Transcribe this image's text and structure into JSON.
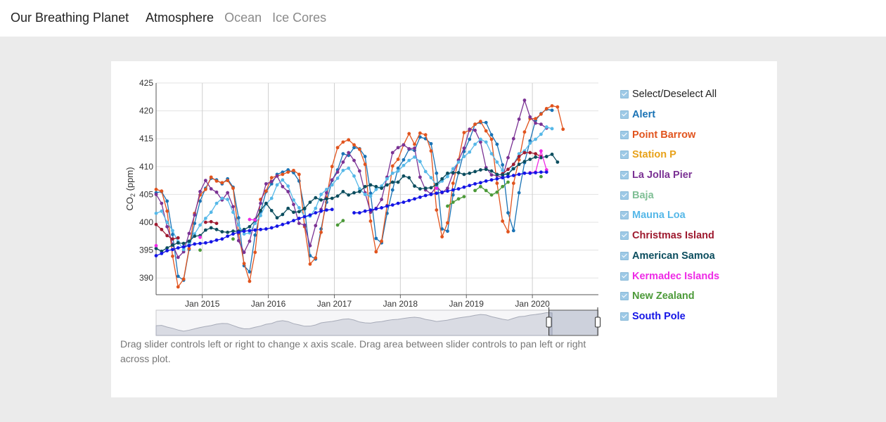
{
  "header": {
    "brand": "Our Breathing Planet",
    "tabs": [
      {
        "label": "Atmosphere",
        "active": true
      },
      {
        "label": "Ocean",
        "active": false
      },
      {
        "label": "Ice Cores",
        "active": false
      }
    ]
  },
  "hint": "Drag slider controls left or right to change x axis scale. Drag area between slider controls to pan left or right across plot.",
  "legend": {
    "select_all": "Select/Deselect All"
  },
  "chart_data": {
    "type": "line",
    "ylabel": "CO2 (ppm)",
    "ylabel_main": "CO",
    "ylabel_sub": "2",
    "ylabel_unit": " (ppm)",
    "ylim": [
      387,
      425
    ],
    "y_ticks": [
      390,
      395,
      400,
      405,
      410,
      415,
      420,
      425
    ],
    "xlim": [
      2014.3,
      2021.0
    ],
    "x_ticks": [
      {
        "value": 2015.0,
        "label": "Jan 2015"
      },
      {
        "value": 2016.0,
        "label": "Jan 2016"
      },
      {
        "value": 2017.0,
        "label": "Jan 2017"
      },
      {
        "value": 2018.0,
        "label": "Jan 2018"
      },
      {
        "value": 2019.0,
        "label": "Jan 2019"
      },
      {
        "value": 2020.0,
        "label": "Jan 2020"
      }
    ],
    "grid": true,
    "legend_placement": "right",
    "series": [
      {
        "name": "Alert",
        "color": "#1a73b5",
        "t0": 2014.3,
        "dt": 0.0833,
        "values": [
          405.3,
          405.5,
          403.8,
          397.8,
          390.3,
          389.6,
          395.1,
          399.8,
          403.8,
          406.1,
          407.9,
          407.6,
          406.9,
          407.8,
          406.3,
          400.8,
          392.2,
          391.1,
          397.7,
          401.9,
          405.5,
          406.9,
          408.6,
          409.0,
          409.4,
          408.9,
          407.4,
          402.4,
          394.0,
          393.4,
          398.8,
          403.6,
          407.5,
          409.4,
          412.3,
          412.0,
          413.4,
          413.2,
          411.8,
          405.2,
          397.1,
          396.3,
          401.6,
          405.8,
          409.7,
          411.2,
          413.1,
          412.9,
          415.3,
          415.0,
          414.1,
          408.8,
          398.8,
          398.4,
          404.9,
          408.9,
          412.7,
          414.9,
          417.6,
          417.9,
          417.9,
          415.7,
          414.0,
          410.3,
          401.7,
          398.5,
          405.3,
          410.7,
          414.6,
          418.3,
          419.5,
          420.3,
          420.1
        ]
      },
      {
        "name": "Point Barrow",
        "color": "#e1541e",
        "t0": 2014.3,
        "dt": 0.0833,
        "values": [
          405.9,
          405.6,
          402.0,
          393.9,
          388.4,
          389.8,
          395.3,
          401.6,
          404.9,
          405.9,
          408.1,
          407.4,
          407.1,
          407.5,
          406.1,
          398.0,
          392.6,
          389.4,
          394.6,
          404.1,
          405.6,
          408.0,
          408.3,
          408.6,
          409.0,
          409.3,
          408.6,
          399.2,
          392.5,
          393.6,
          398.2,
          404.4,
          410.0,
          413.4,
          414.4,
          414.8,
          413.9,
          413.1,
          410.4,
          400.2,
          394.7,
          396.6,
          403.0,
          410.1,
          411.3,
          413.9,
          415.9,
          414.0,
          416.0,
          415.7,
          412.8,
          402.2,
          397.4,
          399.9,
          407.0,
          411.2,
          416.1,
          416.5,
          417.6,
          418.1,
          416.4,
          414.9,
          407.0,
          400.2,
          398.3,
          407.0,
          411.2,
          416.2,
          418.6,
          418.6,
          419.4,
          420.4,
          420.9,
          420.7,
          416.7
        ]
      },
      {
        "name": "Station P",
        "color": "#e8a21a",
        "t0": 2014.3,
        "dt": 0.0833,
        "values": []
      },
      {
        "name": "La Jolla Pier",
        "color": "#7b3294",
        "t0": 2014.3,
        "dt": 0.0833,
        "values": [
          405.0,
          403.4,
          399.2,
          396.0,
          393.7,
          394.7,
          398.0,
          401.3,
          405.5,
          407.5,
          406.0,
          405.4,
          404.0,
          405.3,
          402.8,
          396.7,
          394.6,
          396.6,
          400.5,
          403.4,
          406.9,
          407.3,
          408.3,
          406.4,
          405.5,
          403.2,
          399.8,
          399.5,
          395.8,
          399.4,
          402.3,
          405.3,
          407.6,
          409.0,
          410.8,
          412.5,
          411.1,
          409.2,
          405.3,
          401.8,
          402.5,
          404.1,
          408.1,
          412.5,
          413.4,
          413.9,
          413.2,
          413.3,
          408.1,
          405.8,
          405.1,
          406.5,
          405.3,
          406.1,
          408.8,
          411.1,
          413.3,
          416.7,
          416.5,
          414.4,
          409.8,
          408.5,
          408.4,
          408.0,
          411.6,
          415.0,
          418.5,
          421.9,
          418.9,
          417.8,
          417.6,
          416.9
        ]
      },
      {
        "name": "Baja",
        "color": "#7fbf95",
        "t0": 2014.3,
        "dt": 0.0833,
        "values": []
      },
      {
        "name": "Mauna Loa",
        "color": "#56b8e8",
        "t0": 2014.3,
        "dt": 0.0833,
        "values": [
          401.6,
          402.0,
          400.0,
          398.5,
          396.5,
          395.1,
          396.3,
          397.9,
          399.5,
          400.7,
          401.8,
          403.4,
          404.3,
          404.1,
          401.8,
          399.5,
          397.9,
          398.1,
          399.8,
          401.2,
          403.3,
          404.3,
          406.7,
          407.6,
          406.5,
          404.0,
          402.6,
          401.0,
          401.1,
          402.5,
          405.0,
          405.9,
          406.7,
          407.9,
          409.3,
          409.7,
          408.3,
          406.0,
          405.0,
          404.7,
          405.9,
          406.5,
          407.8,
          408.8,
          409.2,
          410.2,
          411.1,
          411.7,
          410.9,
          409.1,
          408.0,
          406.6,
          407.4,
          408.2,
          409.6,
          410.8,
          411.8,
          412.6,
          414.0,
          414.9,
          414.4,
          412.3,
          410.8,
          409.3,
          408.2,
          410.4,
          412.3,
          412.8,
          414.2,
          414.9,
          415.8,
          417.1,
          416.8
        ]
      },
      {
        "name": "Christmas Island",
        "color": "#9e1a2f",
        "t0": 2014.3,
        "dt": 0.0833,
        "values": [
          399.6,
          398.7,
          397.6,
          397.0,
          397.2,
          null,
          null,
          null,
          null,
          400.0,
          400.1,
          399.8,
          null,
          null,
          null,
          null,
          null,
          null,
          null,
          null,
          null,
          null,
          null,
          null,
          null,
          null,
          null,
          null,
          null,
          null,
          null,
          null,
          null,
          null,
          null,
          null,
          null,
          null,
          null,
          null,
          null,
          null,
          null,
          null,
          null,
          null,
          null,
          null,
          null,
          null,
          null,
          null,
          null,
          null,
          null,
          null,
          null,
          null,
          null,
          null,
          null,
          null,
          null,
          408.7,
          409.5,
          410.4,
          411.8,
          412.5,
          412.5,
          412.3,
          411.8,
          null,
          null
        ]
      },
      {
        "name": "American Samoa",
        "color": "#0b4d5e",
        "t0": 2014.3,
        "dt": 0.0833,
        "values": [
          395.3,
          394.8,
          395.4,
          395.9,
          396.3,
          396.2,
          396.6,
          397.5,
          397.6,
          398.6,
          399.0,
          398.7,
          398.3,
          398.2,
          398.4,
          398.4,
          398.7,
          399.2,
          400.3,
          402.1,
          403.4,
          402.1,
          400.8,
          401.4,
          402.5,
          401.8,
          401.9,
          402.5,
          403.6,
          404.4,
          404.0,
          404.2,
          404.3,
          404.7,
          405.5,
          404.9,
          405.3,
          405.5,
          406.4,
          406.7,
          406.4,
          406.1,
          406.7,
          407.2,
          407.2,
          408.3,
          408.0,
          406.5,
          406.0,
          406.1,
          406.2,
          406.8,
          407.8,
          408.8,
          408.9,
          408.9,
          408.6,
          408.8,
          409.1,
          409.4,
          409.5,
          409.2,
          408.6,
          408.5,
          408.7,
          409.6,
          410.4,
          410.9,
          411.3,
          411.7,
          411.6,
          411.8,
          412.2,
          410.8
        ]
      },
      {
        "name": "Kermadec Islands",
        "color": "#ee2ae6",
        "t0": 2014.3,
        "dt": 0.0833,
        "values": [
          395.8,
          null,
          null,
          null,
          null,
          null,
          null,
          null,
          397.3,
          null,
          null,
          null,
          null,
          null,
          null,
          null,
          null,
          400.5,
          400.4,
          null,
          null,
          null,
          null,
          null,
          null,
          null,
          null,
          null,
          null,
          null,
          null,
          null,
          null,
          null,
          null,
          null,
          null,
          null,
          null,
          null,
          null,
          null,
          null,
          null,
          null,
          null,
          null,
          null,
          null,
          null,
          null,
          406.1,
          null,
          null,
          null,
          null,
          null,
          null,
          null,
          null,
          null,
          null,
          null,
          null,
          null,
          null,
          null,
          null,
          408.9,
          409.0,
          412.8,
          409.4,
          null
        ]
      },
      {
        "name": "New Zealand",
        "color": "#4c9a39",
        "t0": 2014.3,
        "dt": 0.0833,
        "values": [
          null,
          null,
          null,
          null,
          null,
          null,
          null,
          null,
          395.0,
          null,
          null,
          null,
          null,
          null,
          397.0,
          null,
          null,
          null,
          null,
          null,
          null,
          null,
          null,
          null,
          null,
          null,
          null,
          null,
          null,
          null,
          null,
          null,
          null,
          399.5,
          400.3,
          null,
          null,
          null,
          null,
          null,
          null,
          null,
          null,
          null,
          null,
          null,
          null,
          null,
          null,
          null,
          null,
          null,
          null,
          402.9,
          403.6,
          404.2,
          404.6,
          null,
          405.7,
          406.4,
          405.7,
          404.9,
          405.4,
          406.4,
          407.2,
          null,
          null,
          null,
          null,
          null,
          408.2,
          null,
          null
        ]
      },
      {
        "name": "South Pole",
        "color": "#1414e6",
        "t0": 2014.3,
        "dt": 0.0833,
        "values": [
          394.0,
          394.4,
          394.9,
          395.1,
          395.4,
          395.6,
          395.8,
          396.1,
          396.2,
          396.3,
          396.5,
          396.8,
          397.0,
          397.5,
          397.9,
          398.2,
          398.4,
          398.5,
          398.6,
          398.7,
          398.8,
          399.0,
          399.3,
          399.6,
          399.9,
          400.3,
          400.7,
          401.0,
          401.3,
          401.7,
          402.0,
          402.2,
          402.3,
          null,
          null,
          null,
          401.7,
          401.7,
          402.0,
          402.2,
          402.4,
          402.6,
          402.9,
          403.1,
          403.4,
          403.6,
          403.9,
          404.2,
          404.5,
          404.8,
          405.0,
          405.2,
          405.4,
          405.6,
          405.8,
          406.0,
          406.3,
          406.6,
          406.9,
          407.1,
          407.4,
          407.6,
          407.8,
          408.0,
          408.2,
          408.4,
          408.6,
          408.8,
          408.8,
          408.9,
          409.0,
          409.0
        ]
      }
    ]
  }
}
